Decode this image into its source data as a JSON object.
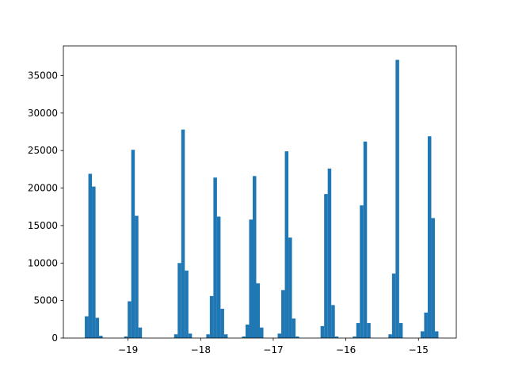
{
  "chart_data": {
    "type": "histogram",
    "color": "#1f77b4",
    "bins": [
      -19.645,
      -19.5958,
      -19.5466,
      -19.4974,
      -19.4482,
      -19.399,
      -19.3498,
      -19.3006,
      -19.2514,
      -19.2022,
      -19.153,
      -19.1038,
      -19.0546,
      -19.0054,
      -18.9562,
      -18.907,
      -18.8578,
      -18.8086,
      -18.7594,
      -18.7102,
      -18.661,
      -18.6118,
      -18.5626,
      -18.5134,
      -18.4642,
      -18.415,
      -18.3658,
      -18.3166,
      -18.2674,
      -18.2182,
      -18.169,
      -18.1198,
      -18.0706,
      -18.0214,
      -17.9722,
      -17.923,
      -17.8738,
      -17.8246,
      -17.7754,
      -17.7262,
      -17.677,
      -17.6278,
      -17.5786,
      -17.5294,
      -17.4802,
      -17.431,
      -17.3818,
      -17.3326,
      -17.2834,
      -17.2342,
      -17.185,
      -17.1358,
      -17.0866,
      -17.0374,
      -16.9882,
      -16.939,
      -16.8898,
      -16.8406,
      -16.7914,
      -16.7422,
      -16.693,
      -16.6438,
      -16.5946,
      -16.5454,
      -16.4962,
      -16.447,
      -16.3978,
      -16.3486,
      -16.2994,
      -16.2502,
      -16.201,
      -16.1518,
      -16.1026,
      -16.0534,
      -16.0042,
      -15.955,
      -15.9058,
      -15.8566,
      -15.8074,
      -15.7582,
      -15.709,
      -15.6598,
      -15.6106,
      -15.5614,
      -15.5122,
      -15.463,
      -15.4138,
      -15.3646,
      -15.3154,
      -15.2662,
      -15.217,
      -15.1678,
      -15.1186,
      -15.0694,
      -15.0202,
      -14.971,
      -14.9218,
      -14.8726,
      -14.8234,
      -14.7742,
      -14.725
    ],
    "values": [
      0,
      2900,
      21900,
      20200,
      2700,
      300,
      0,
      0,
      0,
      0,
      0,
      0,
      200,
      4900,
      25100,
      16300,
      1400,
      0,
      0,
      0,
      0,
      0,
      0,
      0,
      0,
      0,
      500,
      10000,
      27800,
      9000,
      600,
      0,
      0,
      0,
      0,
      500,
      5600,
      21400,
      16200,
      3900,
      500,
      0,
      0,
      0,
      0,
      200,
      1800,
      15800,
      21600,
      7300,
      1400,
      0,
      0,
      0,
      0,
      600,
      6400,
      24900,
      13400,
      2600,
      200,
      0,
      0,
      0,
      0,
      0,
      0,
      1600,
      19200,
      22600,
      4400,
      200,
      0,
      0,
      0,
      0,
      200,
      2000,
      17700,
      26200,
      2000,
      0,
      0,
      0,
      0,
      0,
      500,
      8600,
      37100,
      2000,
      0,
      0,
      0,
      0,
      0,
      900,
      3400,
      26900,
      16000,
      900
    ],
    "xlim": [
      -19.891,
      -14.479
    ],
    "xticks": [
      {
        "value": -19,
        "label": "−19"
      },
      {
        "value": -18,
        "label": "−18"
      },
      {
        "value": -17,
        "label": "−17"
      },
      {
        "value": -16,
        "label": "−16"
      },
      {
        "value": -15,
        "label": "−15"
      }
    ],
    "ylim": [
      0,
      38955
    ],
    "yticks": [
      0,
      5000,
      10000,
      15000,
      20000,
      25000,
      30000,
      35000
    ]
  }
}
